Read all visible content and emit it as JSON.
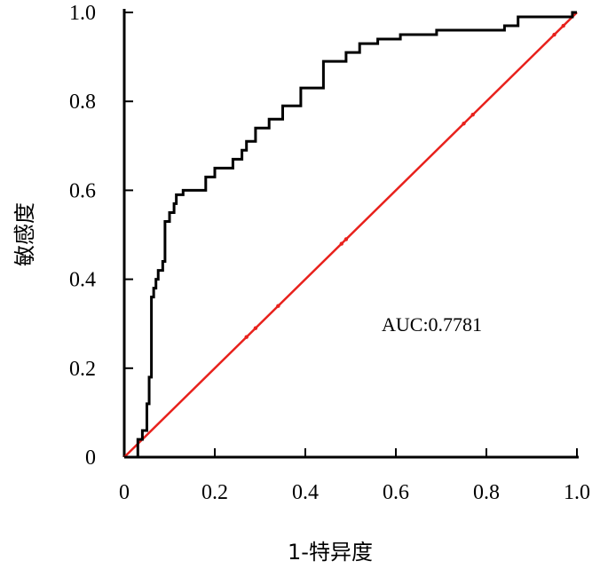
{
  "chart_data": {
    "type": "line",
    "title": "",
    "xlabel": "1-特异度",
    "ylabel": "敏感度",
    "xlim": [
      0,
      1
    ],
    "ylim": [
      0,
      1
    ],
    "xticks": [
      "0",
      "0.2",
      "0.4",
      "0.6",
      "0.8",
      "1.0"
    ],
    "yticks": [
      "0",
      "0.2",
      "0.4",
      "0.6",
      "0.8",
      "1.0"
    ],
    "grid": false,
    "legend": "none",
    "annotation": "AUC:0.7781",
    "series": [
      {
        "color": "#000000",
        "x": [
          0,
          0.03,
          0.03,
          0.04,
          0.04,
          0.05,
          0.05,
          0.055,
          0.055,
          0.06,
          0.06,
          0.065,
          0.065,
          0.07,
          0.07,
          0.075,
          0.075,
          0.085,
          0.085,
          0.09,
          0.09,
          0.1,
          0.1,
          0.11,
          0.11,
          0.115,
          0.115,
          0.13,
          0.13,
          0.18,
          0.18,
          0.2,
          0.2,
          0.24,
          0.24,
          0.26,
          0.26,
          0.27,
          0.27,
          0.29,
          0.29,
          0.32,
          0.32,
          0.35,
          0.35,
          0.39,
          0.39,
          0.44,
          0.44,
          0.49,
          0.49,
          0.52,
          0.52,
          0.56,
          0.56,
          0.61,
          0.61,
          0.69,
          0.69,
          0.84,
          0.84,
          0.87,
          0.87,
          0.99,
          0.99,
          1.0
        ],
        "y": [
          0,
          0,
          0.04,
          0.04,
          0.06,
          0.06,
          0.12,
          0.12,
          0.18,
          0.18,
          0.36,
          0.36,
          0.38,
          0.38,
          0.4,
          0.4,
          0.42,
          0.42,
          0.44,
          0.44,
          0.53,
          0.53,
          0.55,
          0.55,
          0.57,
          0.57,
          0.59,
          0.59,
          0.6,
          0.6,
          0.63,
          0.63,
          0.65,
          0.65,
          0.67,
          0.67,
          0.69,
          0.69,
          0.71,
          0.71,
          0.74,
          0.74,
          0.76,
          0.76,
          0.79,
          0.79,
          0.83,
          0.83,
          0.89,
          0.89,
          0.91,
          0.91,
          0.93,
          0.93,
          0.94,
          0.94,
          0.95,
          0.95,
          0.96,
          0.96,
          0.97,
          0.97,
          0.99,
          0.99,
          1.0,
          1.0
        ]
      },
      {
        "color": "#e8211c",
        "x": [
          0,
          1
        ],
        "y": [
          0,
          1
        ]
      }
    ]
  }
}
